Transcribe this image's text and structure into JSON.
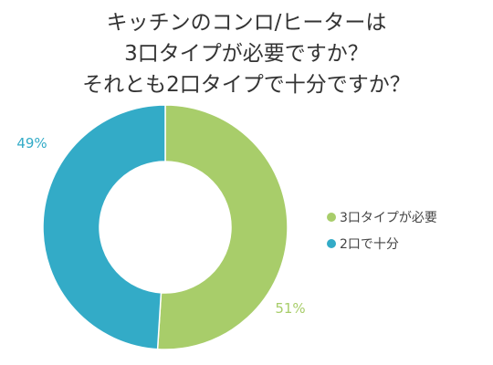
{
  "title": {
    "line1": "キッチンのコンロ/ヒーターは",
    "line2": "3口タイプが必要ですか？",
    "line3": "それとも2口タイプで十分ですか？"
  },
  "chart_data": {
    "type": "pie",
    "donut": true,
    "title": "キッチンのコンロ/ヒーターは 3口タイプが必要ですか？ それとも2口タイプで十分ですか？",
    "categories": [
      "3口タイプが必要",
      "2口で十分"
    ],
    "values": [
      51,
      49
    ],
    "labels": [
      "51%",
      "49%"
    ],
    "colors": [
      "#a8cd6a",
      "#33abc7"
    ],
    "legend_position": "right"
  }
}
